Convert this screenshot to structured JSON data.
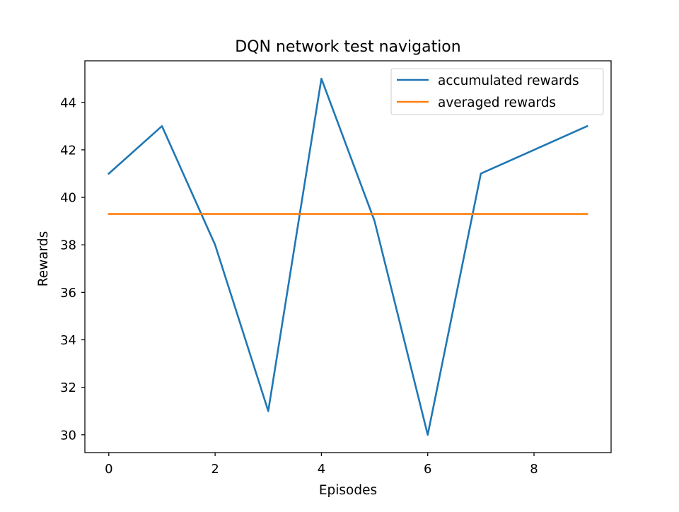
{
  "chart_data": {
    "type": "line",
    "title": "DQN network test navigation",
    "xlabel": "Episodes",
    "ylabel": "Rewards",
    "x": [
      0,
      1,
      2,
      3,
      4,
      5,
      6,
      7,
      8,
      9
    ],
    "series": [
      {
        "name": "accumulated rewards",
        "color": "#1f77b4",
        "values": [
          41,
          43,
          38,
          31,
          45,
          39,
          30,
          41,
          42,
          43
        ]
      },
      {
        "name": "averaged rewards",
        "color": "#ff7f0e",
        "values": [
          39.3,
          39.3,
          39.3,
          39.3,
          39.3,
          39.3,
          39.3,
          39.3,
          39.3,
          39.3
        ]
      }
    ],
    "xlim": [
      -0.45,
      9.45
    ],
    "ylim": [
      29.25,
      45.75
    ],
    "xticks": [
      0,
      2,
      4,
      6,
      8
    ],
    "yticks": [
      30,
      32,
      34,
      36,
      38,
      40,
      42,
      44
    ],
    "grid": false,
    "legend_position": "upper right"
  }
}
